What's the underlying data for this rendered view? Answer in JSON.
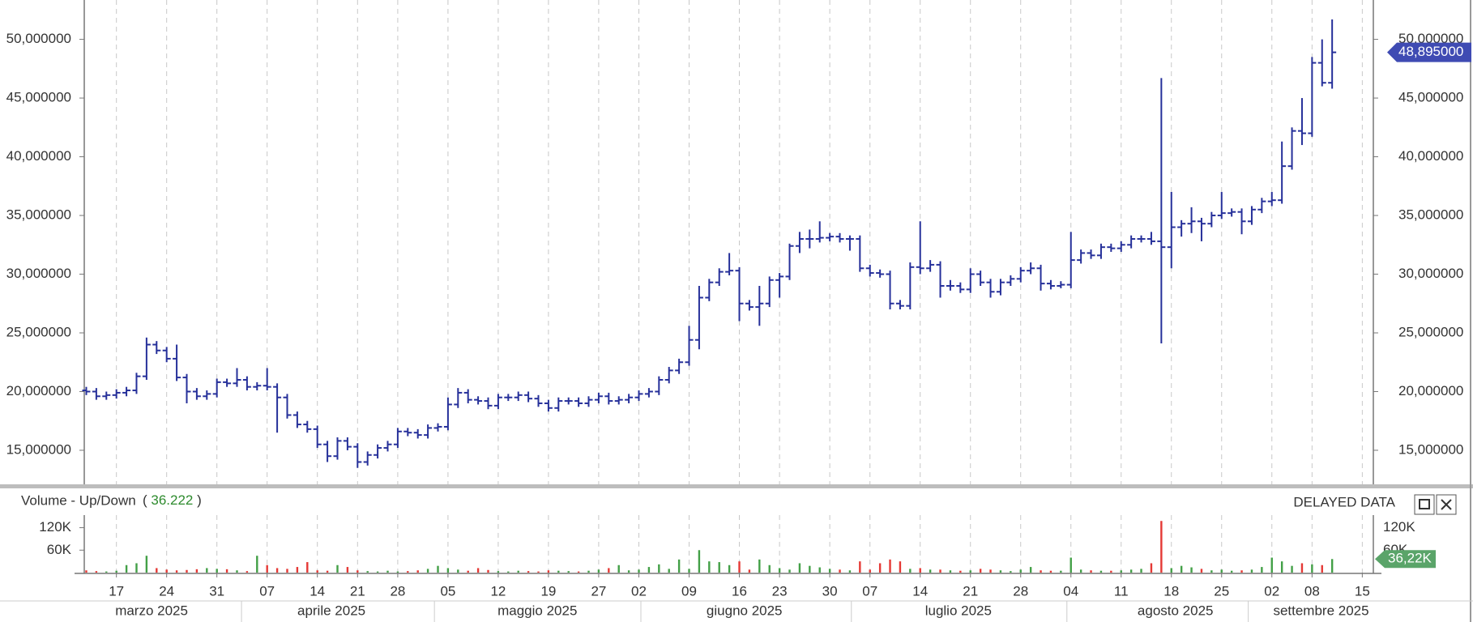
{
  "chart_data": [
    {
      "type": "ohlc",
      "series": [
        {
          "color": "#26309a",
          "values": [
            [
              20.1,
              20.4,
              19.7,
              20.0
            ],
            [
              20.0,
              20.3,
              19.3,
              19.6
            ],
            [
              19.6,
              20.0,
              19.3,
              19.7
            ],
            [
              19.7,
              20.2,
              19.4,
              19.9
            ],
            [
              19.9,
              20.4,
              19.6,
              20.1
            ],
            [
              20.1,
              21.6,
              19.8,
              21.3
            ],
            [
              21.3,
              24.6,
              21.0,
              24.0
            ],
            [
              24.0,
              24.3,
              23.2,
              23.5
            ],
            [
              23.5,
              23.8,
              22.5,
              22.8
            ],
            [
              22.8,
              24.0,
              20.9,
              21.2
            ],
            [
              21.2,
              21.5,
              19.0,
              20.0
            ],
            [
              20.0,
              20.3,
              19.3,
              19.6
            ],
            [
              19.6,
              20.1,
              19.3,
              19.8
            ],
            [
              19.8,
              21.1,
              19.5,
              20.8
            ],
            [
              20.8,
              21.1,
              20.4,
              20.7
            ],
            [
              20.7,
              22.0,
              20.4,
              21.0
            ],
            [
              21.0,
              21.3,
              20.1,
              20.4
            ],
            [
              20.4,
              20.8,
              20.1,
              20.5
            ],
            [
              20.5,
              22.0,
              20.1,
              20.4
            ],
            [
              20.4,
              20.7,
              16.5,
              19.5
            ],
            [
              19.5,
              19.8,
              17.7,
              18.0
            ],
            [
              18.0,
              18.3,
              16.9,
              17.2
            ],
            [
              17.2,
              17.5,
              16.5,
              16.8
            ],
            [
              16.8,
              17.1,
              15.2,
              15.5
            ],
            [
              15.5,
              15.8,
              14.0,
              14.5
            ],
            [
              14.5,
              16.1,
              14.2,
              15.8
            ],
            [
              15.8,
              16.1,
              15.0,
              15.3
            ],
            [
              15.3,
              15.6,
              13.5,
              14.0
            ],
            [
              14.0,
              14.9,
              13.7,
              14.6
            ],
            [
              14.6,
              15.5,
              14.3,
              15.2
            ],
            [
              15.2,
              15.8,
              14.9,
              15.5
            ],
            [
              15.5,
              16.9,
              15.2,
              16.6
            ],
            [
              16.6,
              16.9,
              16.2,
              16.5
            ],
            [
              16.5,
              16.8,
              16.0,
              16.3
            ],
            [
              16.3,
              17.2,
              16.0,
              16.9
            ],
            [
              16.9,
              17.3,
              16.6,
              17.0
            ],
            [
              17.0,
              19.5,
              16.7,
              18.9
            ],
            [
              18.9,
              20.3,
              18.6,
              19.9
            ],
            [
              19.9,
              20.2,
              19.0,
              19.3
            ],
            [
              19.3,
              19.6,
              18.9,
              19.2
            ],
            [
              19.2,
              19.5,
              18.5,
              18.8
            ],
            [
              18.8,
              19.8,
              18.5,
              19.5
            ],
            [
              19.5,
              19.8,
              19.2,
              19.5
            ],
            [
              19.5,
              20.0,
              19.2,
              19.7
            ],
            [
              19.7,
              20.0,
              19.1,
              19.4
            ],
            [
              19.4,
              19.7,
              18.7,
              19.0
            ],
            [
              19.0,
              19.3,
              18.3,
              18.6
            ],
            [
              18.6,
              19.5,
              18.3,
              19.2
            ],
            [
              19.2,
              19.5,
              18.9,
              19.2
            ],
            [
              19.2,
              19.5,
              18.7,
              19.0
            ],
            [
              19.0,
              19.6,
              18.7,
              19.3
            ],
            [
              19.3,
              19.9,
              19.0,
              19.6
            ],
            [
              19.6,
              19.9,
              18.9,
              19.2
            ],
            [
              19.2,
              19.6,
              18.9,
              19.3
            ],
            [
              19.3,
              19.8,
              19.0,
              19.5
            ],
            [
              19.5,
              20.1,
              19.2,
              19.8
            ],
            [
              19.8,
              20.3,
              19.5,
              20.0
            ],
            [
              20.0,
              21.3,
              19.7,
              21.0
            ],
            [
              21.0,
              22.1,
              20.7,
              21.8
            ],
            [
              21.8,
              22.8,
              21.5,
              22.5
            ],
            [
              22.5,
              25.6,
              22.2,
              24.4
            ],
            [
              24.4,
              29.0,
              23.6,
              28.0
            ],
            [
              28.0,
              29.6,
              27.7,
              29.3
            ],
            [
              29.3,
              30.5,
              29.0,
              30.2
            ],
            [
              30.2,
              31.8,
              29.9,
              30.3
            ],
            [
              30.3,
              30.6,
              26.0,
              27.5
            ],
            [
              27.5,
              27.8,
              26.9,
              27.2
            ],
            [
              27.2,
              29.0,
              25.6,
              27.5
            ],
            [
              27.5,
              29.8,
              27.2,
              29.5
            ],
            [
              29.5,
              30.1,
              28.0,
              29.8
            ],
            [
              29.8,
              32.6,
              29.5,
              32.4
            ],
            [
              32.4,
              33.6,
              31.8,
              33.0
            ],
            [
              33.0,
              33.8,
              32.2,
              33.0
            ],
            [
              33.0,
              34.5,
              32.7,
              33.1
            ],
            [
              33.1,
              33.5,
              32.8,
              33.2
            ],
            [
              33.2,
              33.5,
              32.7,
              33.0
            ],
            [
              33.0,
              33.3,
              32.0,
              33.0
            ],
            [
              33.0,
              33.3,
              30.2,
              30.5
            ],
            [
              30.5,
              30.8,
              29.8,
              30.1
            ],
            [
              30.1,
              30.4,
              29.7,
              30.0
            ],
            [
              30.0,
              30.3,
              27.0,
              27.5
            ],
            [
              27.5,
              27.8,
              27.0,
              27.3
            ],
            [
              27.3,
              31.0,
              27.0,
              30.6
            ],
            [
              30.6,
              34.5,
              30.0,
              30.5
            ],
            [
              30.5,
              31.2,
              30.2,
              30.8
            ],
            [
              30.8,
              31.1,
              28.0,
              29.0
            ],
            [
              29.0,
              29.5,
              28.6,
              29.0
            ],
            [
              29.0,
              29.3,
              28.4,
              28.7
            ],
            [
              28.7,
              30.5,
              28.4,
              30.0
            ],
            [
              30.0,
              30.3,
              29.0,
              29.3
            ],
            [
              29.3,
              29.6,
              28.0,
              28.5
            ],
            [
              28.5,
              29.6,
              28.2,
              29.3
            ],
            [
              29.3,
              29.9,
              29.0,
              29.6
            ],
            [
              29.6,
              30.6,
              29.3,
              30.3
            ],
            [
              30.3,
              31.0,
              30.0,
              30.5
            ],
            [
              30.5,
              30.8,
              28.6,
              29.2
            ],
            [
              29.2,
              29.5,
              28.7,
              29.0
            ],
            [
              29.0,
              29.4,
              28.8,
              29.1
            ],
            [
              29.1,
              33.6,
              28.8,
              31.2
            ],
            [
              31.2,
              32.1,
              30.9,
              31.8
            ],
            [
              31.8,
              32.1,
              31.3,
              31.6
            ],
            [
              31.6,
              32.6,
              31.3,
              32.3
            ],
            [
              32.3,
              32.6,
              31.9,
              32.2
            ],
            [
              32.2,
              32.8,
              31.9,
              32.5
            ],
            [
              32.5,
              33.3,
              32.2,
              33.0
            ],
            [
              33.0,
              33.3,
              32.7,
              33.0
            ],
            [
              33.0,
              33.6,
              32.5,
              32.8
            ],
            [
              32.8,
              46.7,
              24.1,
              32.3
            ],
            [
              32.3,
              37.0,
              30.5,
              34.0
            ],
            [
              34.0,
              34.6,
              33.2,
              34.3
            ],
            [
              34.3,
              35.7,
              33.5,
              34.5
            ],
            [
              34.5,
              34.8,
              32.8,
              34.3
            ],
            [
              34.3,
              35.3,
              34.0,
              35.0
            ],
            [
              35.0,
              37.0,
              34.7,
              35.2
            ],
            [
              35.2,
              35.6,
              34.9,
              35.3
            ],
            [
              35.3,
              35.6,
              33.4,
              34.5
            ],
            [
              34.5,
              35.8,
              34.2,
              35.5
            ],
            [
              35.5,
              36.5,
              35.2,
              36.2
            ],
            [
              36.2,
              37.0,
              35.8,
              36.3
            ],
            [
              36.3,
              41.3,
              36.0,
              39.2
            ],
            [
              39.2,
              42.5,
              38.9,
              42.2
            ],
            [
              42.2,
              45.0,
              41.0,
              42.0
            ],
            [
              42.0,
              48.5,
              41.7,
              48.0
            ],
            [
              48.0,
              50.0,
              46.0,
              46.3
            ],
            [
              46.3,
              51.7,
              45.8,
              48.895
            ]
          ]
        }
      ],
      "xlim": [
        -0.2,
        128.1
      ],
      "ylim": [
        12.1,
        52.8
      ],
      "yticks": [
        {
          "value": 15,
          "label": "15,000000"
        },
        {
          "value": 20,
          "label": "20,000000"
        },
        {
          "value": 25,
          "label": "25,000000"
        },
        {
          "value": 30,
          "label": "30,000000"
        },
        {
          "value": 35,
          "label": "35,000000"
        },
        {
          "value": 40,
          "label": "40,000000"
        },
        {
          "value": 45,
          "label": "45,000000"
        },
        {
          "value": 50,
          "label": "50,000000"
        }
      ],
      "last_value": {
        "value": 48.895,
        "label": "48,895000"
      },
      "badge_color": "#3f4bb3",
      "grid": true
    },
    {
      "type": "volume",
      "title": "Volume - Up/Down",
      "readout": {
        "value": 36222,
        "label": "36.222"
      },
      "notice": "DELAYED DATA",
      "up_color": "#43a047",
      "down_color": "#e53935",
      "values": [
        6000,
        4000,
        3000,
        5000,
        20000,
        25000,
        45000,
        12000,
        8000,
        6000,
        7000,
        9000,
        12000,
        10000,
        9000,
        6000,
        4000,
        45000,
        20000,
        12000,
        10000,
        15000,
        28000,
        6000,
        5000,
        20000,
        15000,
        6000,
        4000,
        3000,
        5000,
        3000,
        4000,
        6000,
        10000,
        18000,
        12000,
        8000,
        5000,
        12000,
        7000,
        4000,
        3000,
        5000,
        4000,
        3000,
        6000,
        5000,
        4000,
        3000,
        5000,
        8000,
        12000,
        20000,
        6000,
        8000,
        15000,
        22000,
        10000,
        35000,
        10000,
        60000,
        30000,
        28000,
        20000,
        30000,
        8000,
        35000,
        20000,
        12000,
        8000,
        25000,
        18000,
        14000,
        10000,
        8000,
        6000,
        30000,
        8000,
        25000,
        35000,
        30000,
        10000,
        12000,
        8000,
        8000,
        6000,
        5000,
        6000,
        10000,
        8000,
        6000,
        4000,
        8000,
        15000,
        6000,
        5000,
        5000,
        40000,
        8000,
        6000,
        5000,
        5000,
        6000,
        8000,
        10000,
        25000,
        138000,
        12000,
        18000,
        14000,
        10000,
        6000,
        8000,
        5000,
        6000,
        8000,
        15000,
        40000,
        30000,
        18000,
        25000,
        22000,
        20000,
        36222
      ],
      "xlim": [
        -0.2,
        128.1
      ],
      "ylim": [
        0,
        145000
      ],
      "yticks": [
        {
          "value": 60000,
          "label": "60K"
        },
        {
          "value": 120000,
          "label": "120K"
        }
      ],
      "last_value": {
        "value": 36222,
        "label": "36,22K"
      },
      "badge_color": "#5aa469",
      "xticks": [
        {
          "value": 3,
          "label": "17"
        },
        {
          "value": 8,
          "label": "24"
        },
        {
          "value": 13,
          "label": "31"
        },
        {
          "value": 18,
          "label": "07"
        },
        {
          "value": 23,
          "label": "14"
        },
        {
          "value": 27,
          "label": "21"
        },
        {
          "value": 31,
          "label": "28"
        },
        {
          "value": 36,
          "label": "05"
        },
        {
          "value": 41,
          "label": "12"
        },
        {
          "value": 46,
          "label": "19"
        },
        {
          "value": 51,
          "label": "27"
        },
        {
          "value": 55,
          "label": "02"
        },
        {
          "value": 60,
          "label": "09"
        },
        {
          "value": 65,
          "label": "16"
        },
        {
          "value": 69,
          "label": "23"
        },
        {
          "value": 74,
          "label": "30"
        },
        {
          "value": 78,
          "label": "07"
        },
        {
          "value": 83,
          "label": "14"
        },
        {
          "value": 88,
          "label": "21"
        },
        {
          "value": 93,
          "label": "28"
        },
        {
          "value": 98,
          "label": "04"
        },
        {
          "value": 103,
          "label": "11"
        },
        {
          "value": 108,
          "label": "18"
        },
        {
          "value": 113,
          "label": "25"
        },
        {
          "value": 118,
          "label": "02"
        },
        {
          "value": 122,
          "label": "08"
        },
        {
          "value": 127,
          "label": "15"
        }
      ],
      "months": [
        {
          "value": 6.5,
          "label": "marzo 2025"
        },
        {
          "value": 24.4,
          "label": "aprile 2025"
        },
        {
          "value": 44.9,
          "label": "maggio 2025"
        },
        {
          "value": 65.5,
          "label": "giugno 2025"
        },
        {
          "value": 86.8,
          "label": "luglio 2025"
        },
        {
          "value": 108.4,
          "label": "agosto 2025"
        },
        {
          "value": 122.9,
          "label": "settembre 2025"
        }
      ]
    }
  ]
}
